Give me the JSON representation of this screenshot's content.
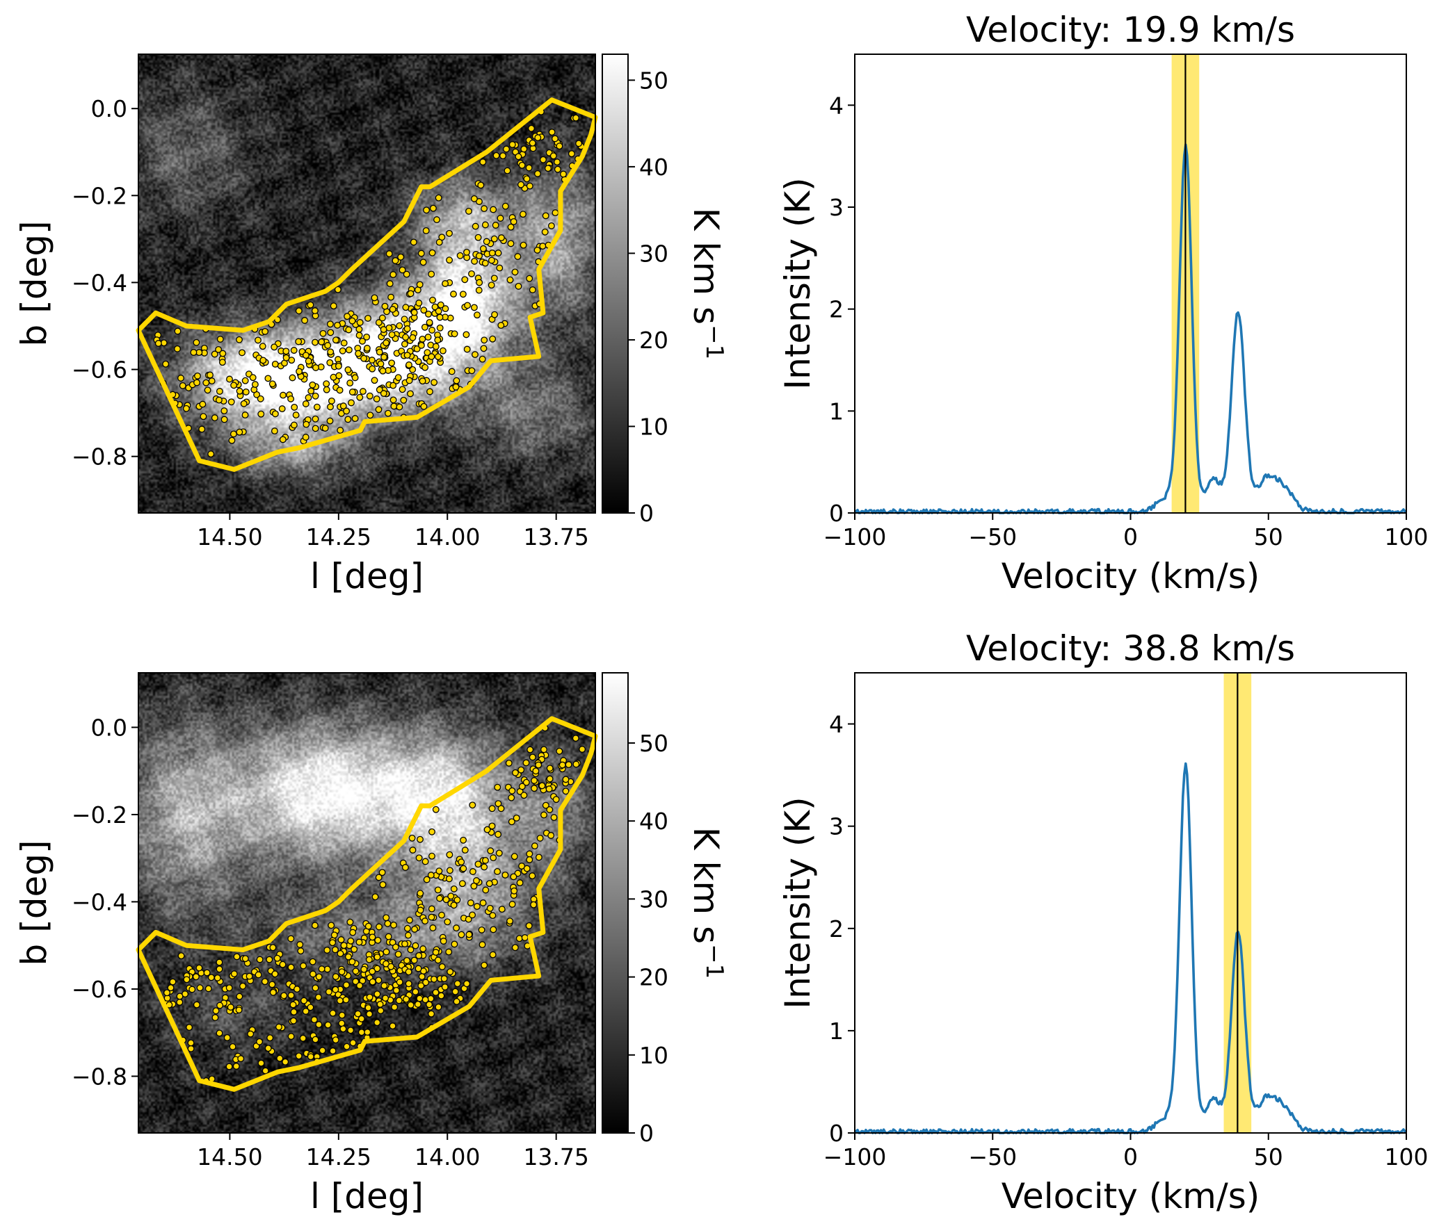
{
  "chart_data": [
    {
      "type": "heatmap",
      "panel": "top-left",
      "description_kind": "integrated intensity map with source markers and boundary polygon",
      "xlabel": "l [deg]",
      "ylabel": "b [deg]",
      "xlim": [
        14.71,
        13.66
      ],
      "ylim": [
        -0.93,
        0.125
      ],
      "xticks": [
        14.5,
        14.25,
        14.0,
        13.75
      ],
      "xtick_labels": [
        "14.50",
        "14.25",
        "14.00",
        "13.75"
      ],
      "yticks": [
        0.0,
        -0.2,
        -0.4,
        -0.6,
        -0.8
      ],
      "ytick_labels": [
        "0.0",
        "−0.2",
        "−0.4",
        "−0.6",
        "−0.8"
      ],
      "colorbar": {
        "label": "K km s",
        "label_exponent": "−1",
        "range": [
          0,
          53
        ],
        "ticks": [
          0,
          10,
          20,
          30,
          40,
          50
        ],
        "tick_labels": [
          "0",
          "10",
          "20",
          "30",
          "40",
          "50"
        ],
        "cmap": "gray"
      },
      "emission_blobs": [
        {
          "l": 14.25,
          "b": -0.62,
          "sl": 0.17,
          "sb": 0.07,
          "amp": 0.85
        },
        {
          "l": 14.08,
          "b": -0.52,
          "sl": 0.13,
          "sb": 0.08,
          "amp": 0.75
        },
        {
          "l": 13.95,
          "b": -0.42,
          "sl": 0.08,
          "sb": 0.09,
          "amp": 0.7
        },
        {
          "l": 14.45,
          "b": -0.62,
          "sl": 0.12,
          "sb": 0.08,
          "amp": 0.6
        },
        {
          "l": 13.96,
          "b": -0.25,
          "sl": 0.09,
          "sb": 0.07,
          "amp": 0.5
        },
        {
          "l": 13.74,
          "b": -0.3,
          "sl": 0.07,
          "sb": 0.12,
          "amp": 0.5
        },
        {
          "l": 14.35,
          "b": -0.78,
          "sl": 0.1,
          "sb": 0.05,
          "amp": 0.45
        },
        {
          "l": 14.6,
          "b": -0.1,
          "sl": 0.1,
          "sb": 0.1,
          "amp": 0.25
        },
        {
          "l": 13.8,
          "b": -0.7,
          "sl": 0.1,
          "sb": 0.08,
          "amp": 0.3
        }
      ],
      "boundary_polygon": {
        "color": "#ffd700",
        "l": [
          14.71,
          14.67,
          14.6,
          14.47,
          14.41,
          14.37,
          14.28,
          14.25,
          14.22,
          14.1,
          14.06,
          14.04,
          13.91,
          13.76,
          13.66,
          13.67,
          13.69,
          13.74,
          13.74,
          13.79,
          13.78,
          13.81,
          13.79,
          13.9,
          13.95,
          14.07,
          14.19,
          14.2,
          14.34,
          14.39,
          14.49,
          14.57
        ],
        "b": [
          -0.51,
          -0.47,
          -0.5,
          -0.51,
          -0.49,
          -0.45,
          -0.42,
          -0.4,
          -0.37,
          -0.26,
          -0.18,
          -0.18,
          -0.1,
          0.02,
          -0.02,
          -0.06,
          -0.11,
          -0.19,
          -0.28,
          -0.37,
          -0.47,
          -0.48,
          -0.57,
          -0.58,
          -0.64,
          -0.71,
          -0.72,
          -0.74,
          -0.78,
          -0.79,
          -0.83,
          -0.81
        ]
      },
      "markers": {
        "color": "#ffd700",
        "edge": "#000000",
        "count": 560
      }
    },
    {
      "type": "line",
      "panel": "top-right",
      "title": "Velocity: 19.9 km/s",
      "xlabel": "Velocity (km/s)",
      "ylabel": "Intensity (K)",
      "xlim": [
        -100,
        100
      ],
      "ylim": [
        0,
        4.5
      ],
      "xticks": [
        -100,
        -50,
        0,
        50,
        100
      ],
      "xtick_labels": [
        "−100",
        "−50",
        "0",
        "50",
        "100"
      ],
      "yticks": [
        0,
        1,
        2,
        3,
        4
      ],
      "ytick_labels": [
        "0",
        "1",
        "2",
        "3",
        "4"
      ],
      "marked_velocity": 19.9,
      "highlight_band": [
        14.9,
        24.9
      ],
      "series": [
        {
          "name": "spectrum",
          "color": "#1f77b4",
          "peaks": [
            {
              "center": 20.0,
              "amp": 3.55,
              "sigma": 2.2
            },
            {
              "center": 39.0,
              "amp": 1.95,
              "sigma": 2.4
            },
            {
              "center": 14.0,
              "amp": 0.15,
              "sigma": 4.0
            },
            {
              "center": 30.0,
              "amp": 0.32,
              "sigma": 3.0
            },
            {
              "center": 50.0,
              "amp": 0.35,
              "sigma": 4.0
            },
            {
              "center": 57.0,
              "amp": 0.15,
              "sigma": 3.0
            }
          ]
        }
      ]
    },
    {
      "type": "heatmap",
      "panel": "bottom-left",
      "description_kind": "integrated intensity map with source markers and boundary polygon",
      "xlabel": "l [deg]",
      "ylabel": "b [deg]",
      "xlim": [
        14.71,
        13.66
      ],
      "ylim": [
        -0.93,
        0.125
      ],
      "xticks": [
        14.5,
        14.25,
        14.0,
        13.75
      ],
      "xtick_labels": [
        "14.50",
        "14.25",
        "14.00",
        "13.75"
      ],
      "yticks": [
        0.0,
        -0.2,
        -0.4,
        -0.6,
        -0.8
      ],
      "ytick_labels": [
        "0.0",
        "−0.2",
        "−0.4",
        "−0.6",
        "−0.8"
      ],
      "colorbar": {
        "label": "K km s",
        "label_exponent": "−1",
        "range": [
          0,
          59
        ],
        "ticks": [
          0,
          10,
          20,
          30,
          40,
          50
        ],
        "tick_labels": [
          "0",
          "10",
          "20",
          "30",
          "40",
          "50"
        ],
        "cmap": "gray"
      },
      "emission_blobs": [
        {
          "l": 14.3,
          "b": -0.15,
          "sl": 0.13,
          "sb": 0.11,
          "amp": 0.85
        },
        {
          "l": 14.02,
          "b": -0.15,
          "sl": 0.12,
          "sb": 0.1,
          "amp": 0.75
        },
        {
          "l": 14.6,
          "b": -0.2,
          "sl": 0.1,
          "sb": 0.15,
          "amp": 0.55
        },
        {
          "l": 13.95,
          "b": -0.35,
          "sl": 0.1,
          "sb": 0.1,
          "amp": 0.5
        },
        {
          "l": 14.15,
          "b": -0.48,
          "sl": 0.2,
          "sb": 0.07,
          "amp": 0.35
        },
        {
          "l": 13.75,
          "b": -0.2,
          "sl": 0.06,
          "sb": 0.1,
          "amp": 0.35
        },
        {
          "l": 14.5,
          "b": -0.65,
          "sl": 0.1,
          "sb": 0.06,
          "amp": 0.2
        }
      ],
      "boundary_polygon": {
        "color": "#ffd700",
        "l": [
          14.71,
          14.67,
          14.6,
          14.47,
          14.41,
          14.37,
          14.28,
          14.25,
          14.22,
          14.1,
          14.06,
          14.04,
          13.91,
          13.76,
          13.66,
          13.67,
          13.69,
          13.74,
          13.74,
          13.79,
          13.78,
          13.81,
          13.79,
          13.9,
          13.95,
          14.07,
          14.19,
          14.2,
          14.34,
          14.39,
          14.49,
          14.57
        ],
        "b": [
          -0.51,
          -0.47,
          -0.5,
          -0.51,
          -0.49,
          -0.45,
          -0.42,
          -0.4,
          -0.37,
          -0.26,
          -0.18,
          -0.18,
          -0.1,
          0.02,
          -0.02,
          -0.06,
          -0.11,
          -0.19,
          -0.28,
          -0.37,
          -0.47,
          -0.48,
          -0.57,
          -0.58,
          -0.64,
          -0.71,
          -0.72,
          -0.74,
          -0.78,
          -0.79,
          -0.83,
          -0.81
        ]
      },
      "markers": {
        "color": "#ffd700",
        "edge": "#000000",
        "count": 560
      }
    },
    {
      "type": "line",
      "panel": "bottom-right",
      "title": "Velocity: 38.8 km/s",
      "xlabel": "Velocity (km/s)",
      "ylabel": "Intensity (K)",
      "xlim": [
        -100,
        100
      ],
      "ylim": [
        0,
        4.5
      ],
      "xticks": [
        -100,
        -50,
        0,
        50,
        100
      ],
      "xtick_labels": [
        "−100",
        "−50",
        "0",
        "50",
        "100"
      ],
      "yticks": [
        0,
        1,
        2,
        3,
        4
      ],
      "ytick_labels": [
        "0",
        "1",
        "2",
        "3",
        "4"
      ],
      "marked_velocity": 38.8,
      "highlight_band": [
        33.8,
        43.8
      ],
      "series": [
        {
          "name": "spectrum",
          "color": "#1f77b4",
          "peaks": [
            {
              "center": 20.0,
              "amp": 3.55,
              "sigma": 2.2
            },
            {
              "center": 39.0,
              "amp": 1.95,
              "sigma": 2.4
            },
            {
              "center": 14.0,
              "amp": 0.15,
              "sigma": 4.0
            },
            {
              "center": 30.0,
              "amp": 0.32,
              "sigma": 3.0
            },
            {
              "center": 50.0,
              "amp": 0.35,
              "sigma": 4.0
            },
            {
              "center": 57.0,
              "amp": 0.15,
              "sigma": 3.0
            }
          ]
        }
      ]
    }
  ]
}
